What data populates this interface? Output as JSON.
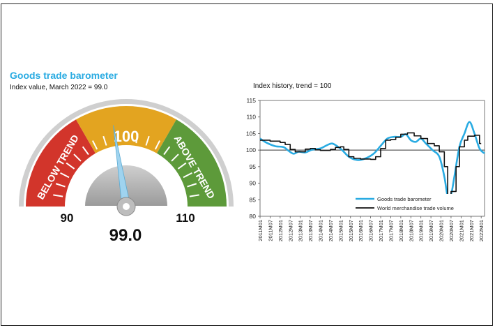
{
  "gauge": {
    "title": "Goods trade barometer",
    "subtitle": "Index value, March 2022 = 99.0",
    "value": 99.0,
    "value_label": "99.0",
    "min": 90,
    "max": 110,
    "min_label": "90",
    "max_label": "110",
    "center_label": "100",
    "zone_labels": {
      "below": "BELOW TREND",
      "above": "ABOVE TREND"
    },
    "colors": {
      "below": "#d2352b",
      "middle": "#e3a420",
      "above": "#5d9a3a",
      "needle": "#9fd3ef"
    }
  },
  "chart_data": {
    "type": "line",
    "title": "Index history, trend = 100",
    "ylim": [
      80,
      115
    ],
    "yticks": [
      "80",
      "85",
      "90",
      "95",
      "100",
      "105",
      "110",
      "115"
    ],
    "reference_line": 100,
    "grid": false,
    "legend_position": "bottom-right",
    "x_ticks": [
      "2011M01",
      "2011M07",
      "2012M01",
      "2012M07",
      "2013M01",
      "2013M07",
      "2014M01",
      "2014M07",
      "2015M01",
      "2015M07",
      "2016M01",
      "2016M07",
      "2017M01",
      "2017M07",
      "2018M01",
      "2018M07",
      "2019M01",
      "2019M07",
      "2020M01",
      "2020M07",
      "2021M01",
      "2021M07",
      "2022M01"
    ],
    "x_start": "2011M01",
    "x_end": "2022M03",
    "series": [
      {
        "name": "Goods trade barometer",
        "color": "#29abe2",
        "points": [
          [
            "2011M01",
            103.5
          ],
          [
            "2011M05",
            102.2
          ],
          [
            "2011M10",
            101.2
          ],
          [
            "2012M03",
            100.9
          ],
          [
            "2012M06",
            99.8
          ],
          [
            "2012M09",
            98.9
          ],
          [
            "2012M12",
            99.5
          ],
          [
            "2013M04",
            99.3
          ],
          [
            "2013M08",
            100.1
          ],
          [
            "2014M01",
            100.5
          ],
          [
            "2014M05",
            101.5
          ],
          [
            "2014M08",
            102.0
          ],
          [
            "2014M11",
            101.2
          ],
          [
            "2015M02",
            100.0
          ],
          [
            "2015M06",
            98.0
          ],
          [
            "2015M11",
            97.0
          ],
          [
            "2016M04",
            97.5
          ],
          [
            "2016M09",
            99.0
          ],
          [
            "2017M01",
            101.3
          ],
          [
            "2017M05",
            103.5
          ],
          [
            "2017M09",
            104.0
          ],
          [
            "2018M01",
            104.0
          ],
          [
            "2018M04",
            104.8
          ],
          [
            "2018M07",
            103.0
          ],
          [
            "2018M10",
            102.5
          ],
          [
            "2019M01",
            103.5
          ],
          [
            "2019M04",
            102.0
          ],
          [
            "2019M08",
            100.0
          ],
          [
            "2019M12",
            98.0
          ],
          [
            "2020M03",
            92.0
          ],
          [
            "2020M05",
            86.0
          ],
          [
            "2020M07",
            86.5
          ],
          [
            "2020M09",
            92.0
          ],
          [
            "2020M12",
            101.0
          ],
          [
            "2021M03",
            105.0
          ],
          [
            "2021M06",
            108.5
          ],
          [
            "2021M09",
            105.0
          ],
          [
            "2021M12",
            100.5
          ],
          [
            "2022M03",
            99.0
          ]
        ]
      },
      {
        "name": "World merchandise trade volume",
        "color": "#111111",
        "points": [
          [
            "2011M01",
            103.0
          ],
          [
            "2011M07",
            102.7
          ],
          [
            "2012M01",
            102.3
          ],
          [
            "2012M04",
            101.7
          ],
          [
            "2012M07",
            100.2
          ],
          [
            "2012M10",
            99.5
          ],
          [
            "2013M01",
            99.5
          ],
          [
            "2013M04",
            100.3
          ],
          [
            "2013M07",
            100.5
          ],
          [
            "2013M10",
            100.1
          ],
          [
            "2014M01",
            99.9
          ],
          [
            "2014M07",
            100.2
          ],
          [
            "2014M10",
            100.8
          ],
          [
            "2015M01",
            101.0
          ],
          [
            "2015M03",
            100.2
          ],
          [
            "2015M06",
            98.0
          ],
          [
            "2015M09",
            97.5
          ],
          [
            "2016M01",
            97.3
          ],
          [
            "2016M07",
            97.2
          ],
          [
            "2016M10",
            98.0
          ],
          [
            "2017M01",
            100.5
          ],
          [
            "2017M04",
            103.0
          ],
          [
            "2017M07",
            103.2
          ],
          [
            "2017M10",
            103.9
          ],
          [
            "2018M01",
            104.8
          ],
          [
            "2018M05",
            105.2
          ],
          [
            "2018M09",
            104.3
          ],
          [
            "2019M01",
            103.5
          ],
          [
            "2019M05",
            102.0
          ],
          [
            "2019M09",
            101.3
          ],
          [
            "2019M12",
            99.5
          ],
          [
            "2020M03",
            95.0
          ],
          [
            "2020M05",
            86.5
          ],
          [
            "2020M07",
            87.5
          ],
          [
            "2020M10",
            95.0
          ],
          [
            "2020M12",
            101.0
          ],
          [
            "2021M03",
            103.0
          ],
          [
            "2021M05",
            104.2
          ],
          [
            "2021M09",
            104.5
          ],
          [
            "2021M12",
            102.0
          ],
          [
            "2022M01",
            102.0
          ]
        ]
      }
    ]
  }
}
